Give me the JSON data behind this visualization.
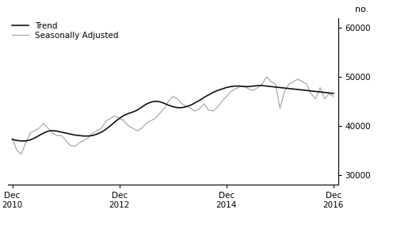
{
  "title": "",
  "ylabel": "no.",
  "ylim": [
    28000,
    62000
  ],
  "yticks": [
    30000,
    40000,
    50000,
    60000
  ],
  "legend_entries": [
    "Trend",
    "Seasonally Adjusted"
  ],
  "trend_color": "#111111",
  "seasonal_color": "#aaaaaa",
  "background_color": "#ffffff",
  "trend_linewidth": 1.2,
  "seasonal_linewidth": 0.9,
  "months": [
    0,
    1,
    2,
    3,
    4,
    5,
    6,
    7,
    8,
    9,
    10,
    11,
    12,
    13,
    14,
    15,
    16,
    17,
    18,
    19,
    20,
    21,
    22,
    23,
    24,
    25,
    26,
    27,
    28,
    29,
    30,
    31,
    32,
    33,
    34,
    35,
    36,
    37,
    38,
    39,
    40,
    41,
    42,
    43,
    44,
    45,
    46,
    47,
    48,
    49,
    50,
    51,
    52,
    53,
    54,
    55,
    56,
    57,
    58,
    59,
    60,
    61,
    62,
    63,
    64,
    65,
    66,
    67,
    68,
    69,
    70,
    71,
    72
  ],
  "trend": [
    37200,
    37000,
    36900,
    36900,
    37100,
    37500,
    38000,
    38500,
    38900,
    39000,
    38900,
    38700,
    38500,
    38300,
    38100,
    38000,
    37900,
    37900,
    38000,
    38300,
    38700,
    39300,
    40000,
    40800,
    41500,
    42100,
    42500,
    42800,
    43200,
    43800,
    44400,
    44800,
    45000,
    44900,
    44600,
    44200,
    43900,
    43700,
    43700,
    43900,
    44200,
    44700,
    45200,
    45800,
    46300,
    46800,
    47200,
    47500,
    47800,
    48000,
    48100,
    48100,
    48000,
    48000,
    48100,
    48200,
    48200,
    48100,
    48000,
    47900,
    47800,
    47700,
    47600,
    47500,
    47400,
    47300,
    47200,
    47100,
    47000,
    46900,
    46800,
    46700,
    46600
  ],
  "seasonal": [
    37500,
    35000,
    34200,
    36500,
    38500,
    39000,
    39500,
    40500,
    39500,
    38500,
    38000,
    38000,
    37000,
    36000,
    35800,
    36500,
    37000,
    37500,
    38500,
    39000,
    39500,
    41000,
    41500,
    42000,
    41500,
    41000,
    40000,
    39500,
    39000,
    39500,
    40500,
    41000,
    41500,
    42500,
    43500,
    45000,
    46000,
    45500,
    44500,
    44000,
    43500,
    43000,
    43500,
    44500,
    43200,
    43000,
    43800,
    45000,
    46000,
    47000,
    47500,
    48000,
    48000,
    47500,
    47200,
    47800,
    48500,
    50000,
    49000,
    48500,
    43500,
    47000,
    48500,
    49000,
    49500,
    49000,
    48500,
    46500,
    45500,
    47800,
    45500,
    46500,
    46000
  ]
}
